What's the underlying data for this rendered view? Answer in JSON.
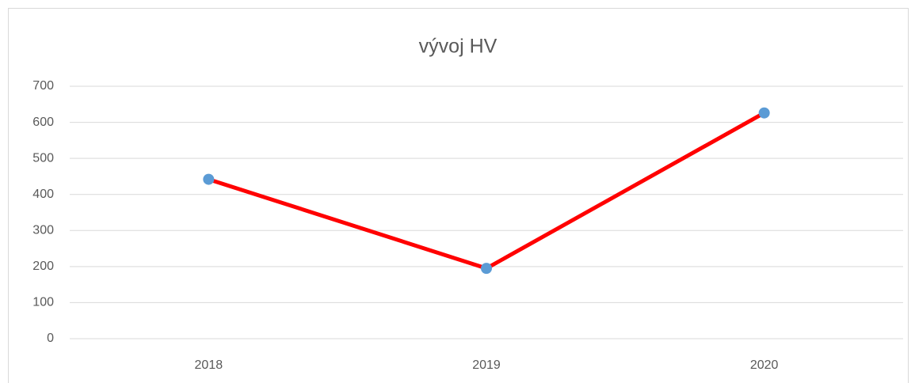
{
  "chart_data": {
    "type": "line",
    "title": "vývoj HV",
    "categories": [
      "2018",
      "2019",
      "2020"
    ],
    "values": [
      442,
      195,
      626
    ],
    "color": "#ff0000",
    "marker_color": "#5b9bd5",
    "ylim": [
      0,
      700
    ],
    "yticks": [
      0,
      100,
      200,
      300,
      400,
      500,
      600,
      700
    ],
    "grid": true
  }
}
